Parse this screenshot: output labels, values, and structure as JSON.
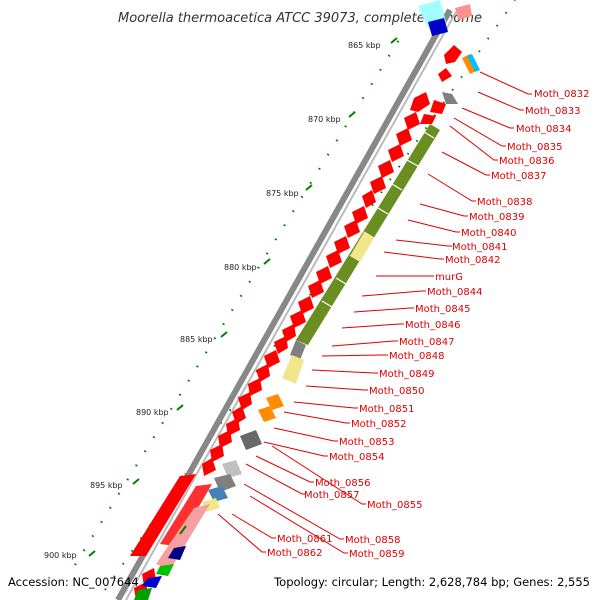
{
  "title": "Moorella thermoacetica ATCC 39073, complete genome",
  "footer": {
    "accession": "Accession: NC_007644",
    "topology": "Topology: circular; Length: 2,628,784 bp; Genes: 2,555"
  },
  "scale_labels": [
    "865 kbp",
    "870 kbp",
    "875 kbp",
    "880 kbp",
    "885 kbp",
    "890 kbp",
    "895 kbp",
    "900 kbp"
  ],
  "gene_labels": [
    "Moth_0832",
    "Moth_0833",
    "Moth_0834",
    "Moth_0835",
    "Moth_0836",
    "Moth_0837",
    "Moth_0838",
    "Moth_0839",
    "Moth_0840",
    "Moth_0841",
    "Moth_0842",
    "murG",
    "Moth_0844",
    "Moth_0845",
    "Moth_0846",
    "Moth_0847",
    "Moth_0848",
    "Moth_0849",
    "Moth_0850",
    "Moth_0851",
    "Moth_0852",
    "Moth_0853",
    "Moth_0854",
    "Moth_0856",
    "Moth_0857",
    "Moth_0855",
    "Moth_0858",
    "Moth_0861",
    "Moth_0859",
    "Moth_0862"
  ],
  "colors": {
    "cds": "#ff0000",
    "cds_dark": "#e00000",
    "olive": "#6b8e23",
    "pale_yellow": "#f0e68c",
    "orange": "#ff8c00",
    "gray": "#696969",
    "light_gray": "#c0c0c0",
    "cyan": "#00bfff",
    "navy": "#000080",
    "steelblue": "#4682b4",
    "green": "#00c000",
    "pink": "#f4a0a0",
    "ruler_dots": "#008000",
    "label_text": "#dd0000"
  }
}
